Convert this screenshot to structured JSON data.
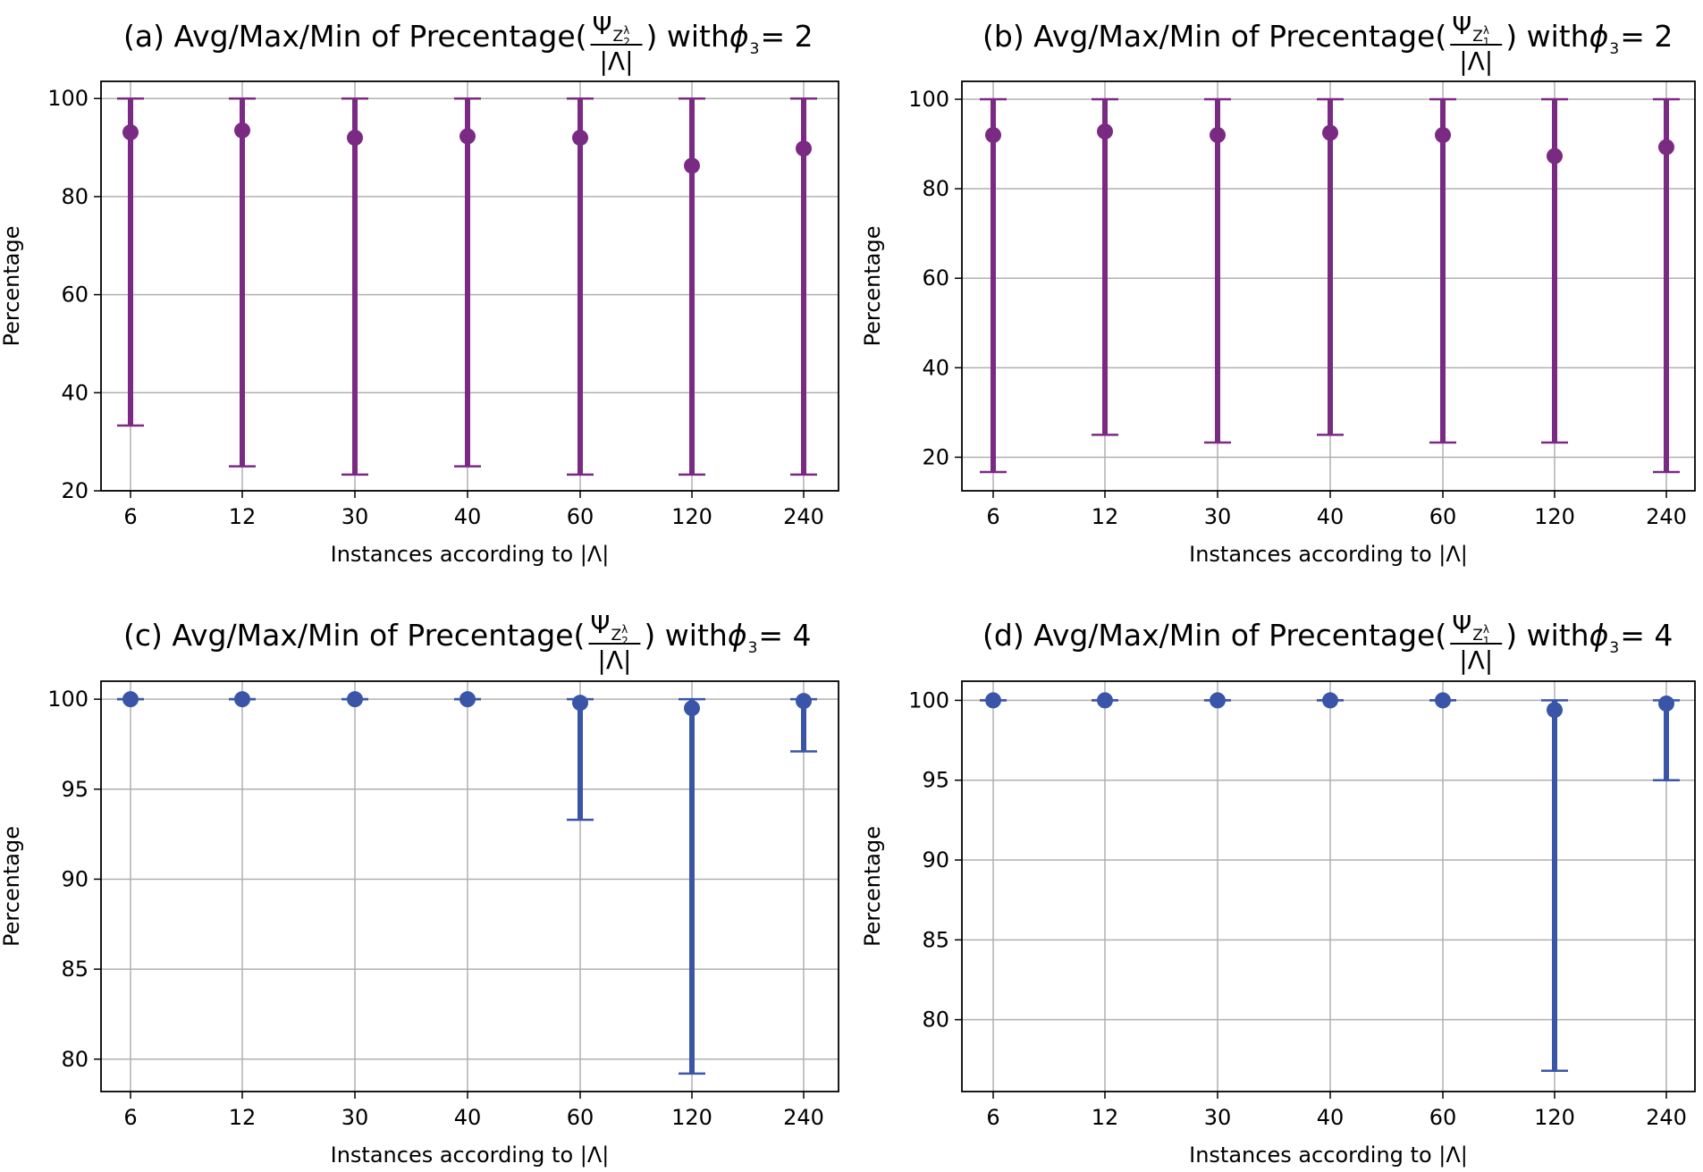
{
  "figure": {
    "description_colors": {
      "purple": "#7b2a83",
      "blue": "#3a55a8",
      "grid": "#b0b0b0"
    }
  },
  "chart_data": [
    {
      "id": "a",
      "type": "errorbar",
      "title_prefix": "(a) Avg/Max/Min of Precentage(",
      "title_suffix": ") with ",
      "title_equation": "ϕ",
      "title_equation_sub": "3",
      "title_equation_value": " = 2",
      "fraction_numerator": "Ψ",
      "fraction_numerator_sub": "Z",
      "fraction_numerator_subsub": "2",
      "fraction_numerator_supsup": "λ",
      "fraction_denominator": "|Λ|",
      "xlabel": "Instances according to |Λ|",
      "ylabel": "Percentage",
      "color": "#7b2a83",
      "categories": [
        "6",
        "12",
        "30",
        "40",
        "60",
        "120",
        "240"
      ],
      "avg": [
        93.1,
        93.5,
        92.0,
        92.3,
        92.0,
        86.3,
        89.8
      ],
      "max": [
        100,
        100,
        100,
        100,
        100,
        100,
        100
      ],
      "min": [
        33.3,
        25.0,
        23.3,
        25.0,
        23.3,
        23.3,
        23.3
      ],
      "ylim": [
        20,
        103.5
      ],
      "yticks": [
        20,
        40,
        60,
        80,
        100
      ],
      "yticklabels": [
        "20",
        "40",
        "60",
        "80",
        "100"
      ],
      "grid": true
    },
    {
      "id": "b",
      "type": "errorbar",
      "title_prefix": "(b) Avg/Max/Min of Precentage(",
      "title_suffix": ") with ",
      "title_equation": "ϕ",
      "title_equation_sub": "3",
      "title_equation_value": " = 2",
      "fraction_numerator": "Ψ",
      "fraction_numerator_sub": "Z",
      "fraction_numerator_subsub": "1",
      "fraction_numerator_supsup": "λ",
      "fraction_denominator": "|Λ|",
      "xlabel": "Instances according to |Λ|",
      "ylabel": "Percentage",
      "color": "#7b2a83",
      "categories": [
        "6",
        "12",
        "30",
        "40",
        "60",
        "120",
        "240"
      ],
      "avg": [
        92.0,
        92.8,
        92.0,
        92.5,
        92.0,
        87.3,
        89.3
      ],
      "max": [
        100,
        100,
        100,
        100,
        100,
        100,
        100
      ],
      "min": [
        16.7,
        25.0,
        23.3,
        25.0,
        23.3,
        23.3,
        16.7
      ],
      "ylim": [
        12.5,
        104
      ],
      "yticks": [
        20,
        40,
        60,
        80,
        100
      ],
      "yticklabels": [
        "20",
        "40",
        "60",
        "80",
        "100"
      ],
      "grid": true
    },
    {
      "id": "c",
      "type": "errorbar",
      "title_prefix": "(c) Avg/Max/Min of Precentage(",
      "title_suffix": ") with ",
      "title_equation": "ϕ",
      "title_equation_sub": "3",
      "title_equation_value": " = 4",
      "fraction_numerator": "Ψ",
      "fraction_numerator_sub": "Z",
      "fraction_numerator_subsub": "2",
      "fraction_numerator_supsup": "λ",
      "fraction_denominator": "|Λ|",
      "xlabel": "Instances according to |Λ|",
      "ylabel": "Percentage",
      "color": "#3a55a8",
      "categories": [
        "6",
        "12",
        "30",
        "40",
        "60",
        "120",
        "240"
      ],
      "avg": [
        100.0,
        100.0,
        100.0,
        100.0,
        99.8,
        99.5,
        99.9
      ],
      "max": [
        100,
        100,
        100,
        100,
        100,
        100,
        100
      ],
      "min": [
        100.0,
        100.0,
        100.0,
        100.0,
        93.3,
        79.2,
        97.1
      ],
      "ylim": [
        78.2,
        101.0
      ],
      "yticks": [
        80,
        85,
        90,
        95,
        100
      ],
      "yticklabels": [
        "80",
        "85",
        "90",
        "95",
        "100"
      ],
      "grid": true
    },
    {
      "id": "d",
      "type": "errorbar",
      "title_prefix": "(d) Avg/Max/Min of Precentage(",
      "title_suffix": ") with ",
      "title_equation": "ϕ",
      "title_equation_sub": "3",
      "title_equation_value": " = 4",
      "fraction_numerator": "Ψ",
      "fraction_numerator_sub": "Z",
      "fraction_numerator_subsub": "1",
      "fraction_numerator_supsup": "λ",
      "fraction_denominator": "|Λ|",
      "xlabel": "Instances according to |Λ|",
      "ylabel": "Percentage",
      "color": "#3a55a8",
      "categories": [
        "6",
        "12",
        "30",
        "40",
        "60",
        "120",
        "240"
      ],
      "avg": [
        100.0,
        100.0,
        100.0,
        100.0,
        100.0,
        99.4,
        99.8
      ],
      "max": [
        100,
        100,
        100,
        100,
        100,
        100,
        100
      ],
      "min": [
        100.0,
        100.0,
        100.0,
        100.0,
        100.0,
        76.8,
        95.0
      ],
      "ylim": [
        75.5,
        101.2
      ],
      "yticks": [
        80,
        85,
        90,
        95,
        100
      ],
      "yticklabels": [
        "80",
        "85",
        "90",
        "95",
        "100"
      ],
      "grid": true
    }
  ]
}
